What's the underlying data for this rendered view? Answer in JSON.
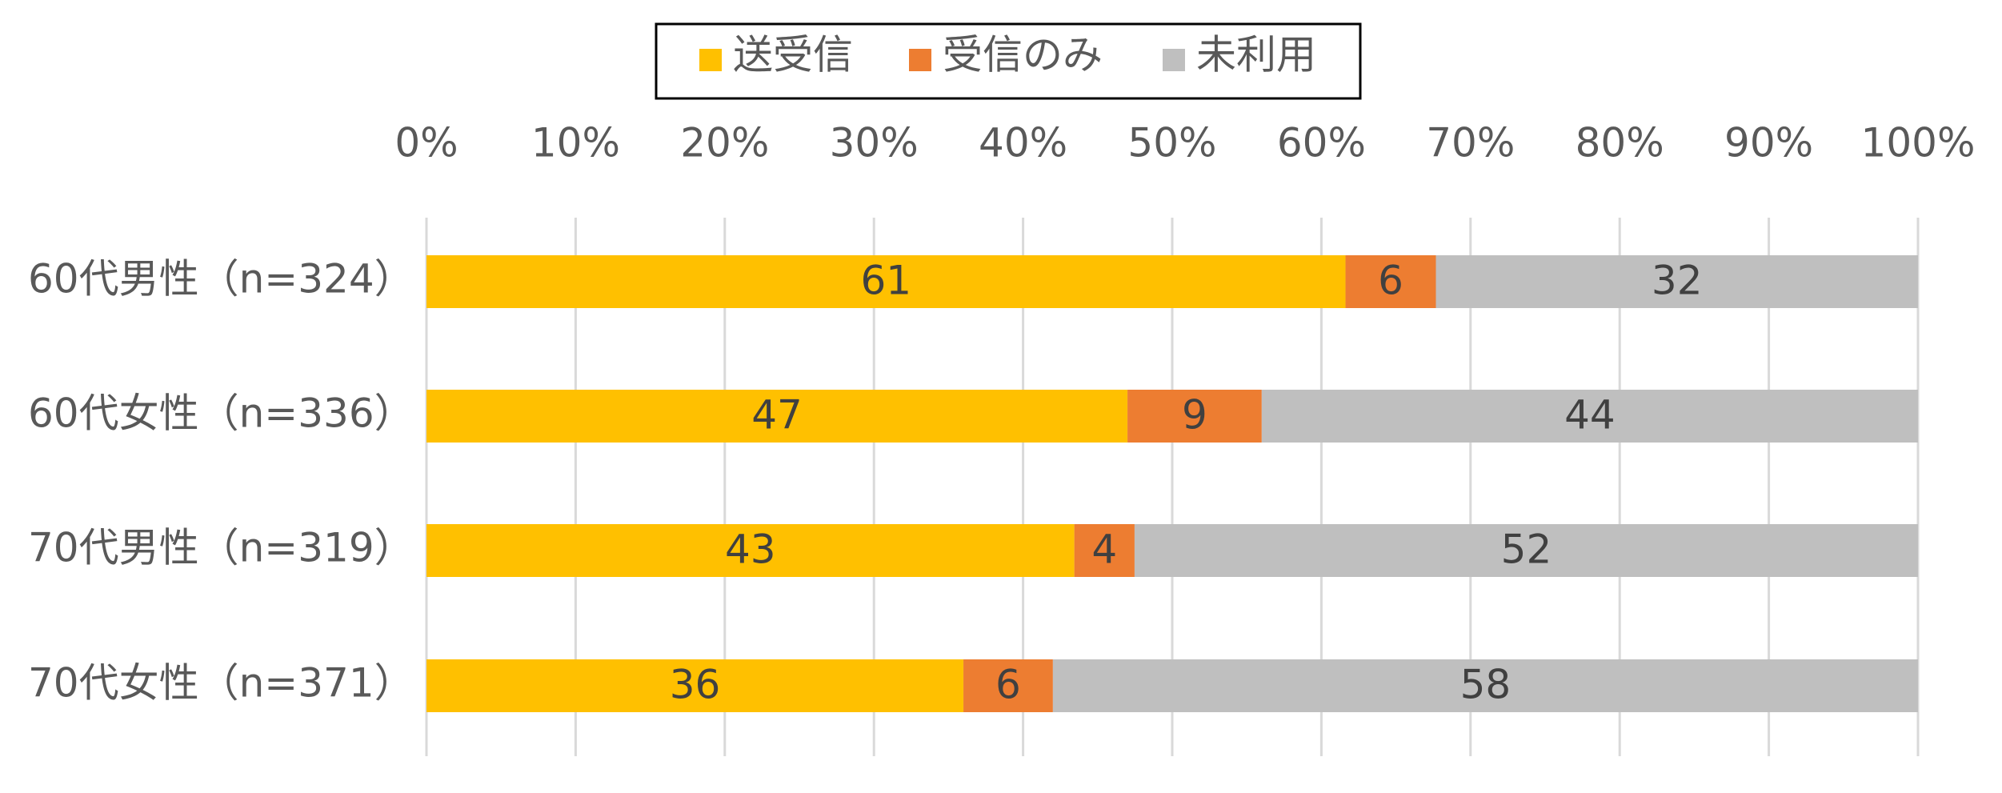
{
  "chart_data": {
    "type": "bar",
    "orientation": "horizontal",
    "stacked": true,
    "percent": true,
    "categories": [
      "60代男性（n=324）",
      "60代女性（n=336）",
      "70代男性（n=319）",
      "70代女性（n=371）"
    ],
    "series": [
      {
        "name": "送受信",
        "color": "#FFC000",
        "values": [
          61,
          47,
          43,
          36
        ]
      },
      {
        "name": "受信のみ",
        "color": "#ED7D31",
        "values": [
          6,
          9,
          4,
          6
        ]
      },
      {
        "name": "未利用",
        "color": "#BFBFBF",
        "values": [
          32,
          44,
          52,
          58
        ]
      }
    ],
    "xlim": [
      0,
      100
    ],
    "x_ticks": [
      "0%",
      "10%",
      "20%",
      "30%",
      "40%",
      "50%",
      "60%",
      "70%",
      "80%",
      "90%",
      "100%"
    ],
    "x_axis_position": "top",
    "grid": true,
    "legend_position": "top",
    "title": "",
    "xlabel": "",
    "ylabel": ""
  }
}
